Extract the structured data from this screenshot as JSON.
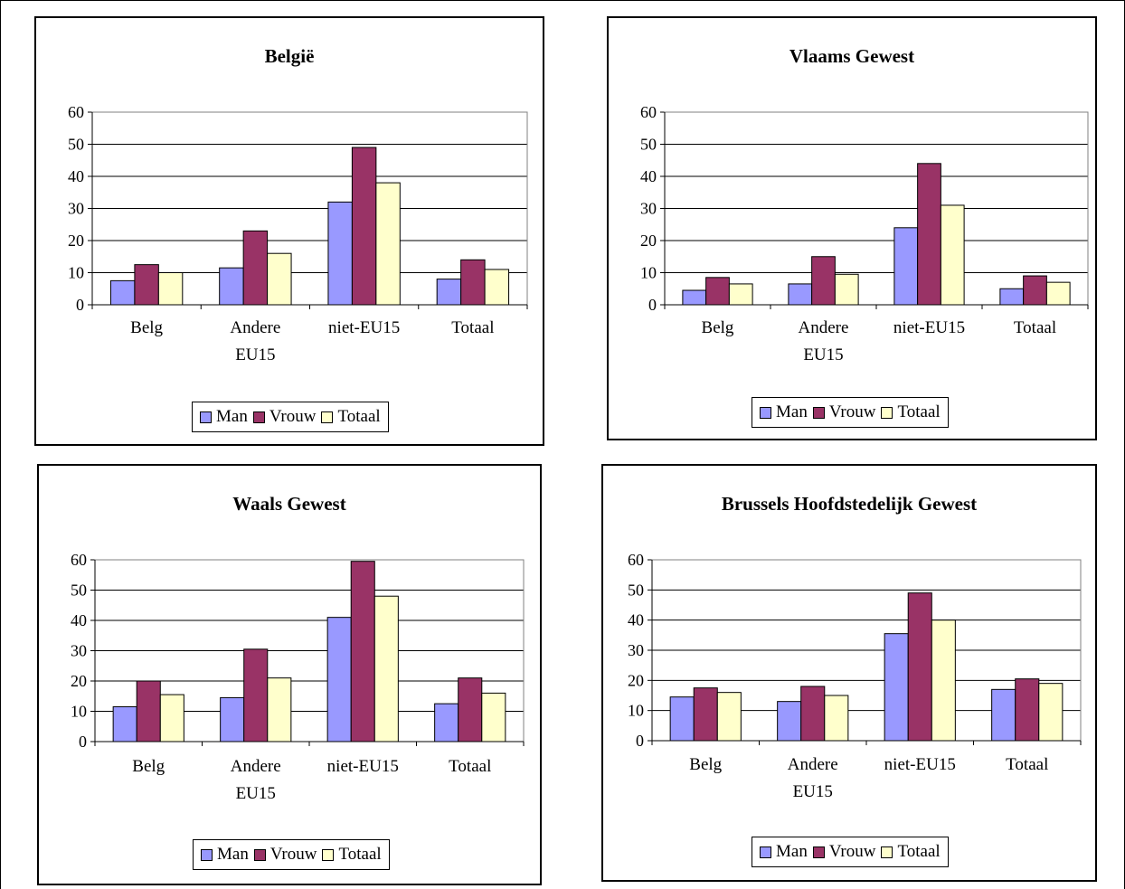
{
  "colors": {
    "Man": "#9999ff",
    "Vrouw": "#993366",
    "Totaal": "#ffffcc"
  },
  "chart_data": [
    {
      "type": "bar",
      "title": "België",
      "categories": [
        [
          "Belg"
        ],
        [
          "Andere",
          "EU15"
        ],
        [
          "niet-EU15"
        ],
        [
          "Totaal"
        ]
      ],
      "ylim": [
        0,
        60
      ],
      "yticks": [
        0,
        10,
        20,
        30,
        40,
        50,
        60
      ],
      "grid": true,
      "legend": "bottom",
      "series": [
        {
          "name": "Man",
          "values": [
            7.5,
            11.5,
            32,
            8
          ]
        },
        {
          "name": "Vrouw",
          "values": [
            12.5,
            23,
            49,
            14
          ]
        },
        {
          "name": "Totaal",
          "values": [
            10,
            16,
            38,
            11
          ]
        }
      ]
    },
    {
      "type": "bar",
      "title": "Vlaams Gewest",
      "categories": [
        [
          "Belg"
        ],
        [
          "Andere",
          "EU15"
        ],
        [
          "niet-EU15"
        ],
        [
          "Totaal"
        ]
      ],
      "ylim": [
        0,
        60
      ],
      "yticks": [
        0,
        10,
        20,
        30,
        40,
        50,
        60
      ],
      "grid": true,
      "legend": "bottom",
      "series": [
        {
          "name": "Man",
          "values": [
            4.5,
            6.5,
            24,
            5
          ]
        },
        {
          "name": "Vrouw",
          "values": [
            8.5,
            15,
            44,
            9
          ]
        },
        {
          "name": "Totaal",
          "values": [
            6.5,
            9.5,
            31,
            7
          ]
        }
      ]
    },
    {
      "type": "bar",
      "title": "Waals Gewest",
      "categories": [
        [
          "Belg"
        ],
        [
          "Andere",
          "EU15"
        ],
        [
          "niet-EU15"
        ],
        [
          "Totaal"
        ]
      ],
      "ylim": [
        0,
        60
      ],
      "yticks": [
        0,
        10,
        20,
        30,
        40,
        50,
        60
      ],
      "grid": true,
      "legend": "bottom",
      "series": [
        {
          "name": "Man",
          "values": [
            11.5,
            14.5,
            41,
            12.5
          ]
        },
        {
          "name": "Vrouw",
          "values": [
            20,
            30.5,
            59.5,
            21
          ]
        },
        {
          "name": "Totaal",
          "values": [
            15.5,
            21,
            48,
            16
          ]
        }
      ]
    },
    {
      "type": "bar",
      "title": "Brussels Hoofdstedelijk Gewest",
      "categories": [
        [
          "Belg"
        ],
        [
          "Andere",
          "EU15"
        ],
        [
          "niet-EU15"
        ],
        [
          "Totaal"
        ]
      ],
      "ylim": [
        0,
        60
      ],
      "yticks": [
        0,
        10,
        20,
        30,
        40,
        50,
        60
      ],
      "grid": true,
      "legend": "bottom",
      "series": [
        {
          "name": "Man",
          "values": [
            14.5,
            13,
            35.5,
            17
          ]
        },
        {
          "name": "Vrouw",
          "values": [
            17.5,
            18,
            49,
            20.5
          ]
        },
        {
          "name": "Totaal",
          "values": [
            16,
            15,
            40,
            19
          ]
        }
      ]
    }
  ]
}
